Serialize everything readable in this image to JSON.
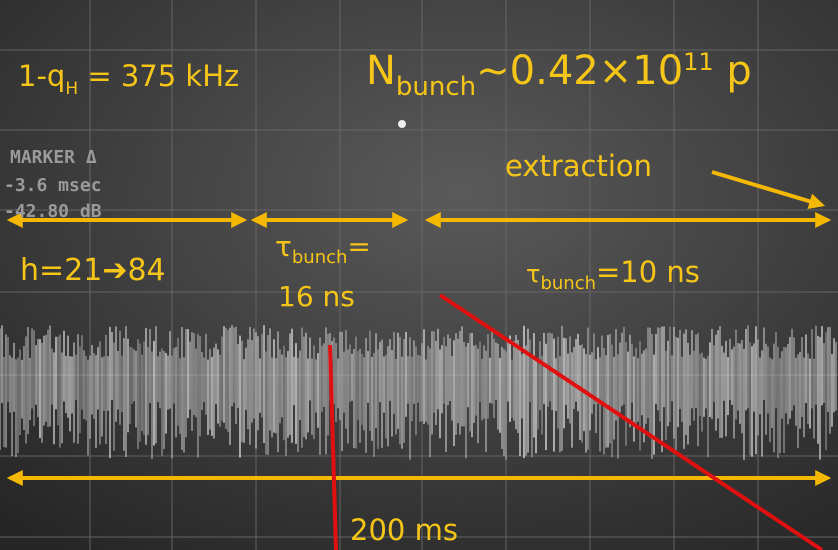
{
  "labels": {
    "tune": {
      "prefix": "1-q",
      "sub": "H",
      "suffix": " = 375 kHz"
    },
    "intensity": {
      "prefix": "N",
      "sub": "bunch",
      "mid": "~0.42×10",
      "sup": "11",
      "suffix": " p"
    },
    "marker": [
      "MARKER Δ",
      "-3.6 msec",
      "-42.80 dB"
    ],
    "extraction": "extraction",
    "harmonic": "h=21➔84",
    "bunch_length_1": {
      "prefix": "τ",
      "sub": "bunch",
      "suffix": "=",
      "line2": "16 ns"
    },
    "bunch_length_2": {
      "prefix": "τ",
      "sub": "bunch",
      "suffix": "=10 ns"
    },
    "duration": "200 ms"
  }
}
